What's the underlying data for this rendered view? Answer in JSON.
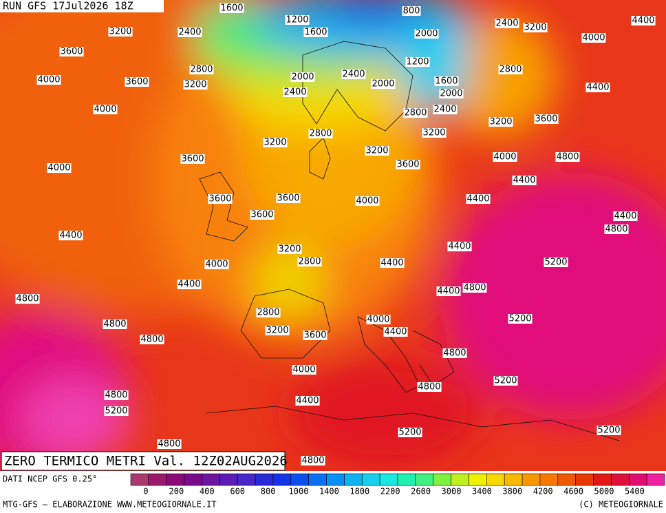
{
  "header": {
    "run": "RUN GFS 17Jul2026 18Z"
  },
  "title": "ZERO TERMICO METRI Val. 12Z02AUG2026",
  "source": "DATI NCEP GFS 0.25°",
  "footer_left": "MTG-GFS – ELABORAZIONE WWW.METEOGIORNALE.IT",
  "footer_right": "(C) METEOGIORNALE",
  "contour_labels": [
    1600,
    800,
    1200,
    1600,
    3200,
    2400,
    3600,
    4000,
    3600,
    3200,
    2800,
    4000,
    2000,
    2400,
    2400,
    2000,
    1200,
    1600,
    2000,
    2400,
    2800,
    2000,
    2400,
    3200,
    4000,
    4400,
    2800,
    4400,
    3600,
    3200,
    3200,
    3200,
    3600,
    4000,
    4800,
    4400,
    2800,
    3200,
    3600,
    4000,
    3600,
    3600,
    4000,
    4400,
    3600,
    4400,
    4800,
    4400,
    4400,
    3200,
    2800,
    4400,
    4000,
    5200,
    4400,
    4400,
    4800,
    4800,
    2800,
    4000,
    5200,
    4800,
    3200,
    4400,
    3600,
    4800,
    4800,
    4000,
    5200,
    4800,
    4800,
    4400,
    5200,
    5200,
    5200,
    4800,
    4800
  ],
  "colorbar": {
    "colors": [
      "#a8386e",
      "#9a1a6a",
      "#8c0a78",
      "#7a0a8c",
      "#6a14a0",
      "#5a1cb4",
      "#4626c8",
      "#2a2ad8",
      "#1434e6",
      "#0a50f0",
      "#0a70f4",
      "#0a90f6",
      "#10b0f2",
      "#14d0ee",
      "#18e8e0",
      "#20f0b0",
      "#40f080",
      "#80f040",
      "#c0f020",
      "#f0f000",
      "#f8d800",
      "#f8b800",
      "#f89800",
      "#f87800",
      "#f05800",
      "#e83800",
      "#e01818",
      "#e0103c",
      "#e00a70",
      "#f020a0"
    ],
    "ticks": [
      0,
      200,
      400,
      600,
      800,
      1000,
      1400,
      1800,
      2200,
      2600,
      3000,
      3400,
      3800,
      4200,
      4600,
      5000,
      5400
    ]
  }
}
